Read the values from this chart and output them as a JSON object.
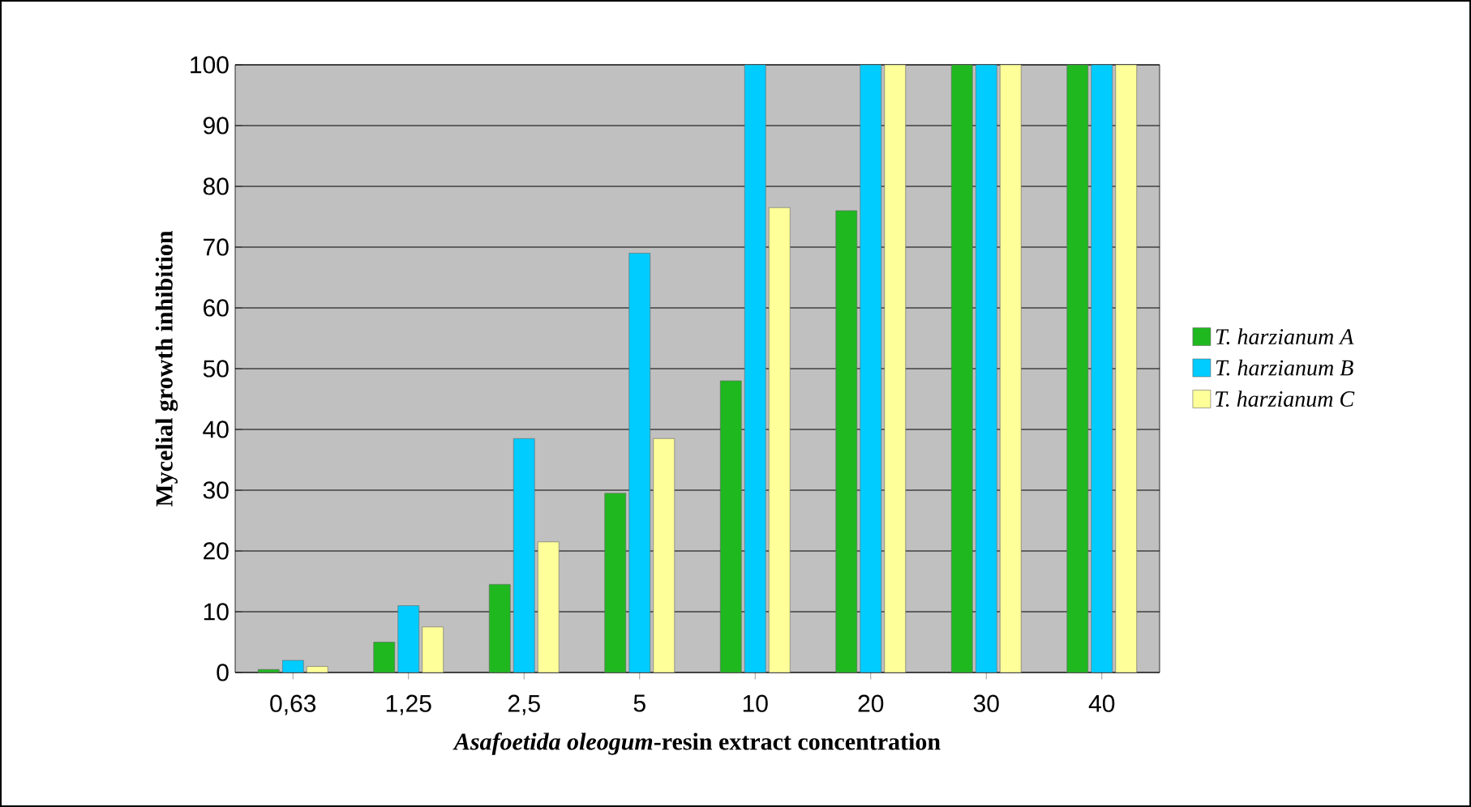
{
  "chart_data": {
    "type": "bar",
    "xlabel": "*Asafoetida oleogum*-resin extract concentration",
    "ylabel": "Mycelial growth inhibition",
    "categories": [
      "0,63",
      "1,25",
      "2,5",
      "5",
      "10",
      "20",
      "30",
      "40"
    ],
    "series": [
      {
        "name": "T. harzianum A",
        "color": "#1fb81f",
        "values": [
          0.5,
          5,
          14.5,
          29.5,
          48,
          76,
          100,
          100
        ]
      },
      {
        "name": "T. harzianum B",
        "color": "#00ccff",
        "values": [
          2,
          11,
          38.5,
          69,
          100,
          100,
          100,
          100
        ]
      },
      {
        "name": "T. harzianum C",
        "color": "#ffff99",
        "values": [
          1,
          7.5,
          21.5,
          38.5,
          76.5,
          100,
          100,
          100
        ]
      }
    ],
    "ylim": [
      0,
      100
    ],
    "yticks": [
      0,
      10,
      20,
      30,
      40,
      50,
      60,
      70,
      80,
      90,
      100
    ],
    "grid": "y",
    "legend": "right"
  }
}
